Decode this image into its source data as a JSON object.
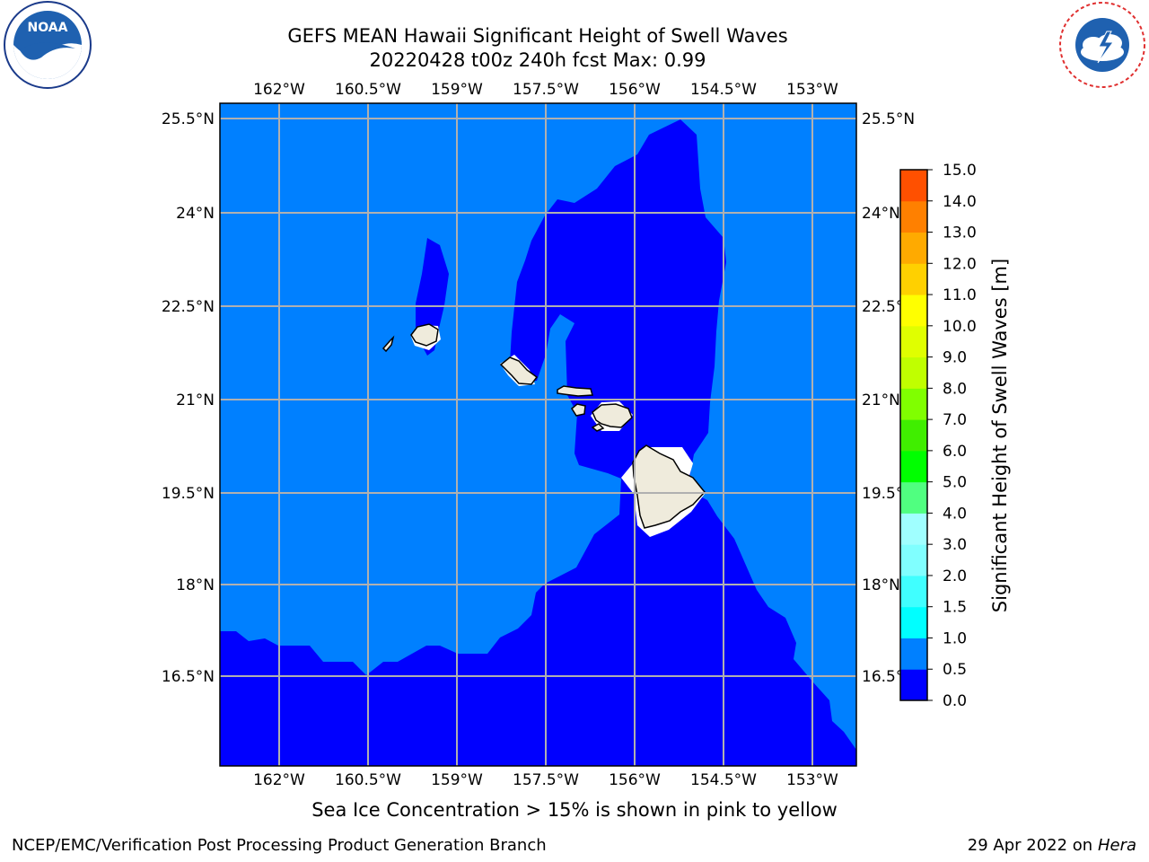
{
  "header": {
    "title_line1": "GEFS MEAN Hawaii Significant Height of Swell Waves",
    "title_line2": "20220428 t00z 240h fcst   Max: 0.99"
  },
  "logos": {
    "left": "noaa-logo",
    "right": "nws-logo"
  },
  "map": {
    "lon_ticks": [
      "162°W",
      "160.5°W",
      "159°W",
      "157.5°W",
      "156°W",
      "154.5°W",
      "153°W"
    ],
    "lat_ticks": [
      "25.5°N",
      "24°N",
      "22.5°N",
      "21°N",
      "19.5°N",
      "18°N",
      "16.5°N"
    ],
    "colors": {
      "level_0_0_5": "#0000ff",
      "level_0_5_1_0": "#0080ff",
      "land": "#efebdc",
      "grid": "#b0b0b0"
    }
  },
  "colorbar": {
    "title": "Significant Height of Swell Waves [m]",
    "levels": [
      "0.0",
      "0.5",
      "1.0",
      "1.5",
      "2.0",
      "3.0",
      "4.0",
      "5.0",
      "6.0",
      "7.0",
      "8.0",
      "9.0",
      "10.0",
      "11.0",
      "12.0",
      "13.0",
      "14.0",
      "15.0"
    ],
    "colors": [
      "#0000ff",
      "#0080ff",
      "#00ffff",
      "#40ffff",
      "#80ffff",
      "#a0ffff",
      "#50ff80",
      "#00ff00",
      "#40ee00",
      "#80ff00",
      "#c0ff00",
      "#e0ff00",
      "#ffff00",
      "#ffd000",
      "#ffaa00",
      "#ff8000",
      "#ff5000",
      "#ff2000",
      "#ff0000"
    ]
  },
  "caption": "Sea Ice Concentration > 15% is shown in pink to yellow",
  "footer": {
    "left": "NCEP/EMC/Verification Post Processing Product Generation Branch",
    "right_prefix": "29 Apr 2022 on ",
    "right_host": "Hera"
  }
}
